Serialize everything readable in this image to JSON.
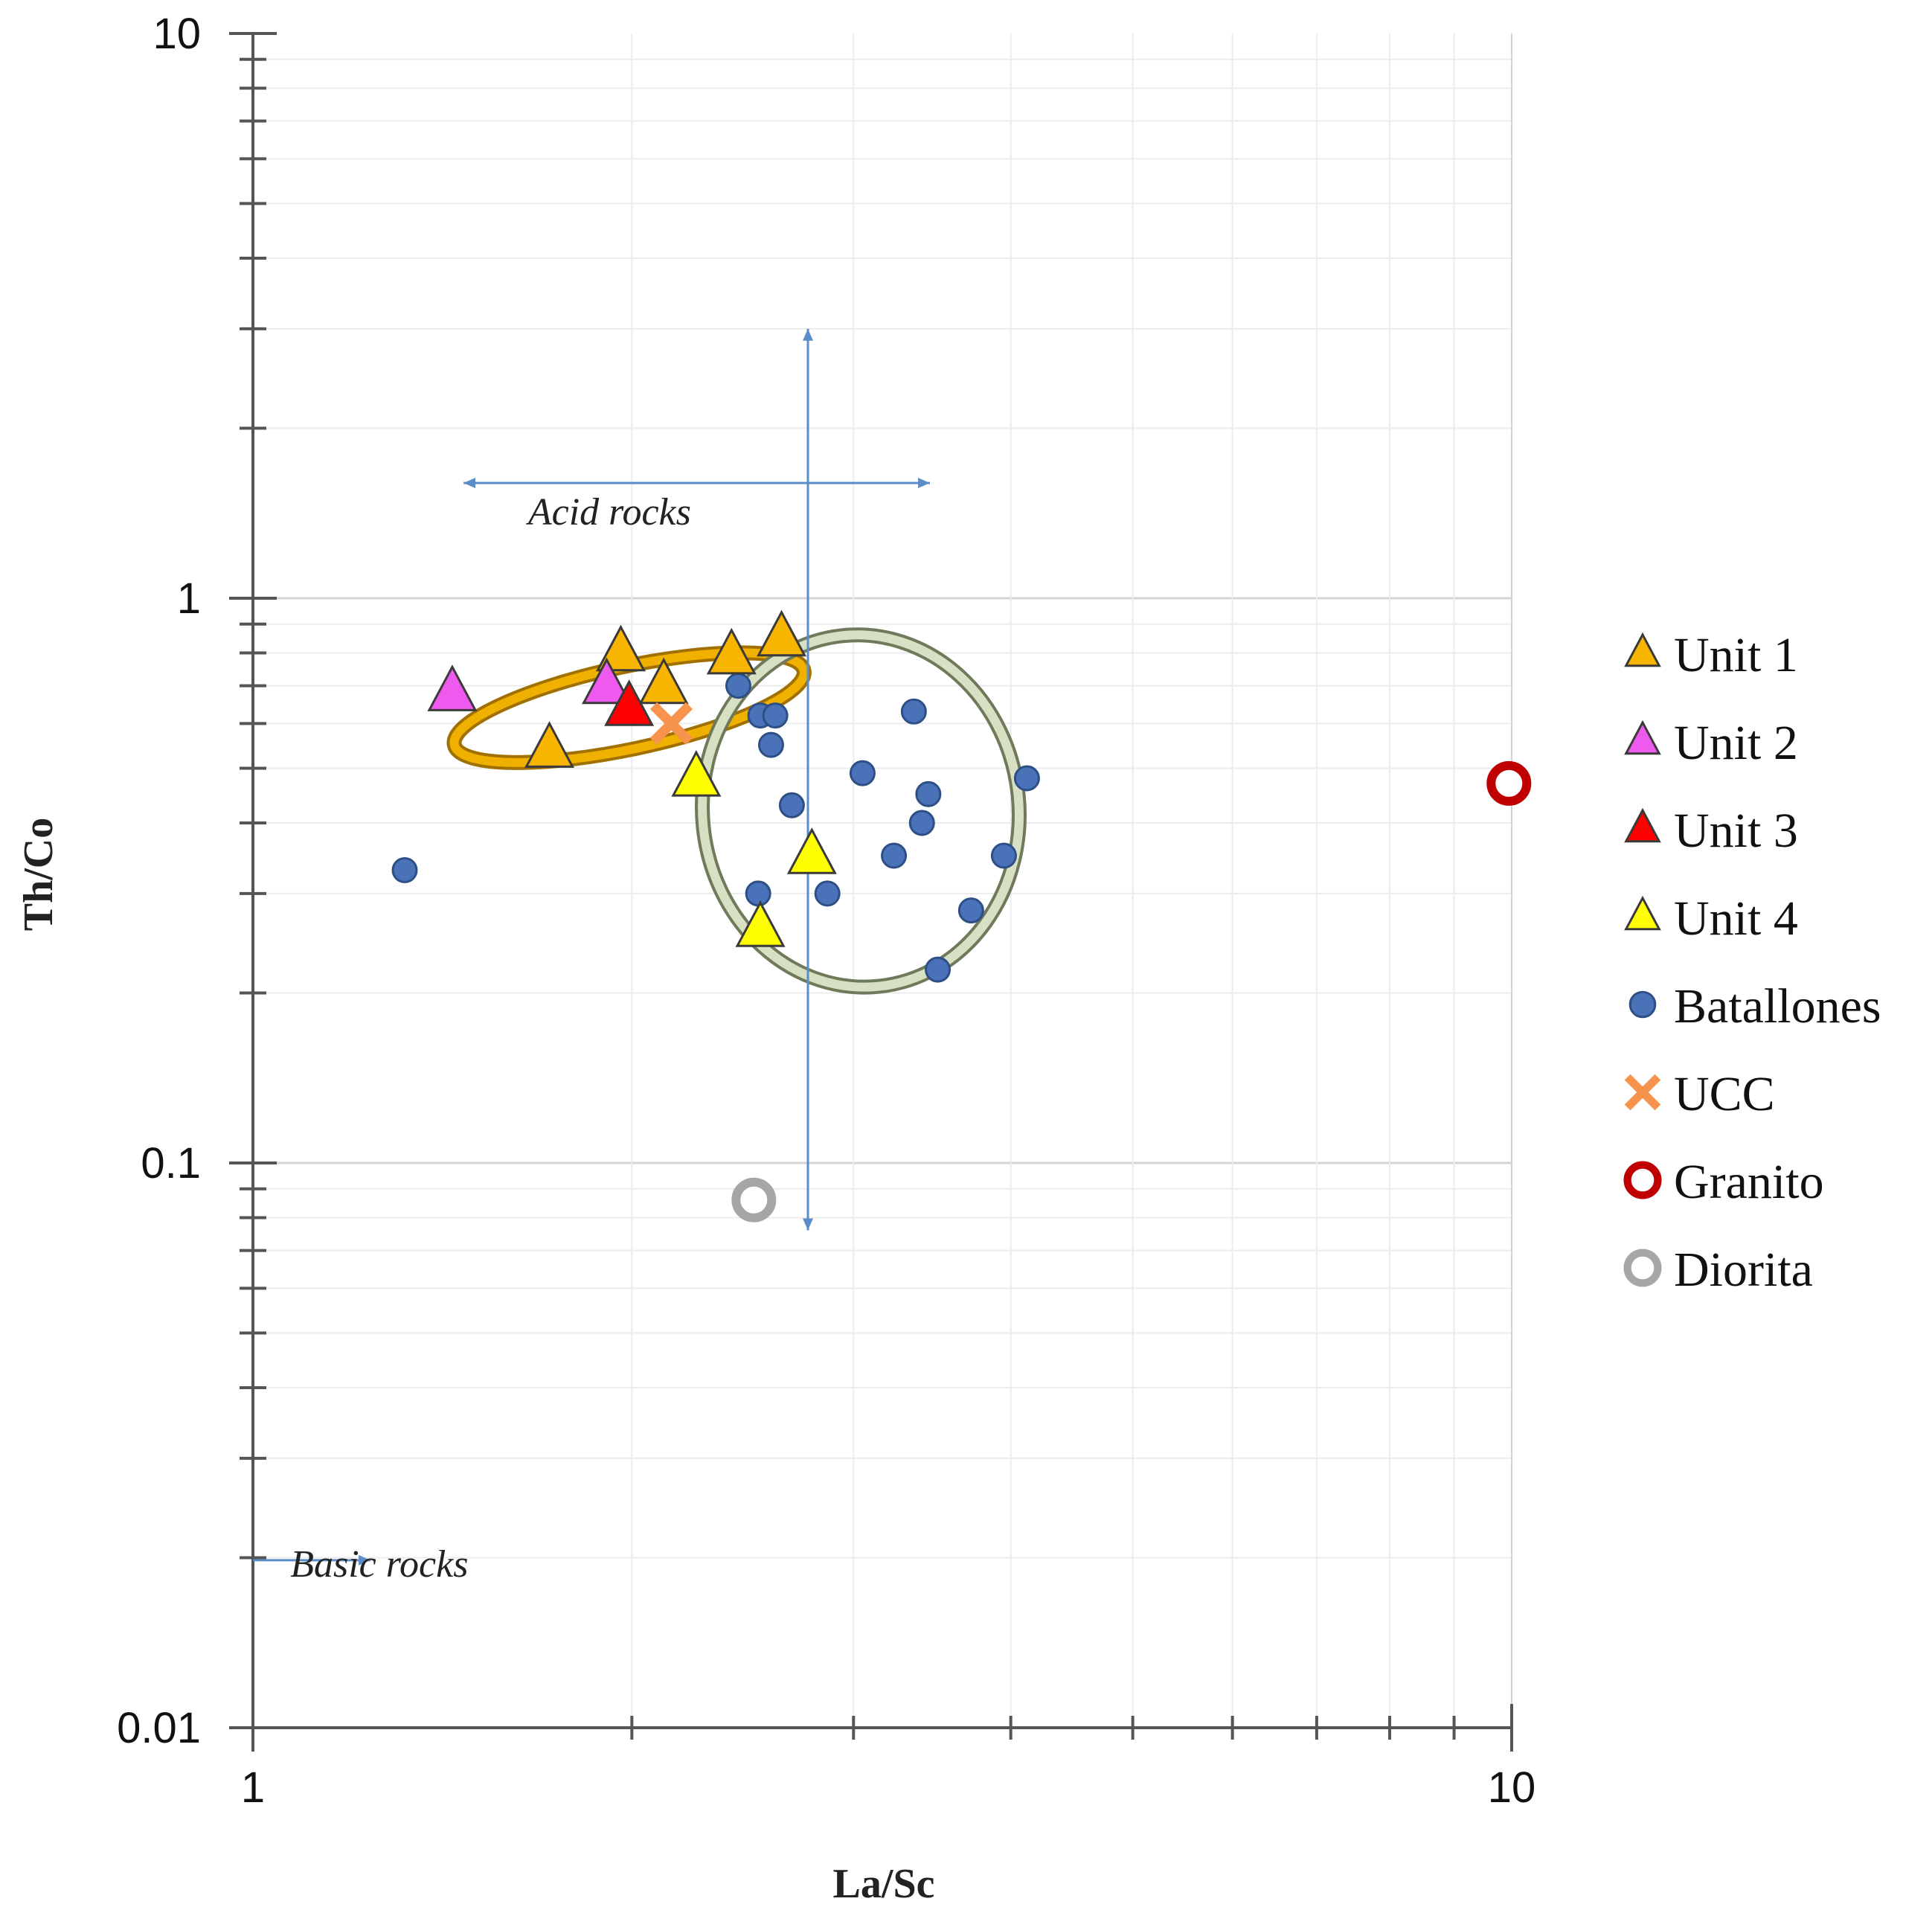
{
  "chart_data": {
    "type": "scatter",
    "title": "",
    "xlabel": "La/Sc",
    "ylabel": "Th/Co",
    "xscale": "log",
    "yscale": "log",
    "xlim": [
      1,
      10
    ],
    "ylim": [
      0.01,
      10
    ],
    "x_ticks": [
      {
        "value": 1,
        "label": "1"
      },
      {
        "value": 10,
        "label": "10"
      }
    ],
    "y_ticks": [
      {
        "value": 10,
        "label": "10"
      },
      {
        "value": 1,
        "label": "1"
      },
      {
        "value": 0.1,
        "label": "0.1"
      },
      {
        "value": 0.01,
        "label": "0.01"
      }
    ],
    "grid": true,
    "legend_position": "right",
    "series": [
      {
        "name": "Unit 1",
        "marker": "triangle",
        "color": "#F7B500",
        "points": [
          [
            1.72,
            0.54
          ],
          [
            1.96,
            0.8
          ],
          [
            2.12,
            0.7
          ],
          [
            2.4,
            0.79
          ],
          [
            2.63,
            0.85
          ]
        ]
      },
      {
        "name": "Unit 2",
        "marker": "triangle",
        "color": "#EE5AEE",
        "points": [
          [
            1.44,
            0.68
          ],
          [
            1.91,
            0.7
          ]
        ]
      },
      {
        "name": "Unit 3",
        "marker": "triangle",
        "color": "#FF0000",
        "points": [
          [
            1.99,
            0.64
          ]
        ]
      },
      {
        "name": "Unit 4",
        "marker": "triangle",
        "color": "#FFFF00",
        "points": [
          [
            2.25,
            0.48
          ],
          [
            2.78,
            0.35
          ],
          [
            2.53,
            0.26
          ]
        ]
      },
      {
        "name": "Batallones",
        "marker": "circle",
        "color": "#4A72B8",
        "points": [
          [
            1.32,
            0.33
          ],
          [
            2.43,
            0.7
          ],
          [
            2.53,
            0.62
          ],
          [
            2.6,
            0.62
          ],
          [
            2.58,
            0.55
          ],
          [
            2.68,
            0.43
          ],
          [
            2.52,
            0.3
          ],
          [
            2.86,
            0.3
          ],
          [
            3.05,
            0.49
          ],
          [
            3.23,
            0.35
          ],
          [
            3.35,
            0.63
          ],
          [
            3.4,
            0.4
          ],
          [
            3.44,
            0.45
          ],
          [
            3.5,
            0.22
          ],
          [
            3.72,
            0.28
          ],
          [
            3.95,
            0.35
          ],
          [
            4.12,
            0.48
          ]
        ]
      },
      {
        "name": "UCC",
        "marker": "x",
        "color": "#F7934C",
        "points": [
          [
            2.15,
            0.6
          ]
        ]
      },
      {
        "name": "Granito",
        "marker": "open-circle",
        "color": "#C00000",
        "points": [
          [
            9.95,
            0.47
          ]
        ]
      },
      {
        "name": "Diorita",
        "marker": "open-circle",
        "color": "#A6A6A6",
        "points": [
          [
            2.5,
            0.086
          ]
        ]
      }
    ],
    "ellipses": [
      {
        "name": "Unit ellipse",
        "color": "#F0B000",
        "inner_color": "#A07000",
        "center": [
          1.99,
          0.64
        ],
        "x_span": [
          1.42,
          2.73
        ],
        "y_span": [
          0.55,
          0.77
        ],
        "rotation_deg": -12
      },
      {
        "name": "Batallones ellipse",
        "color": "#D8E0C4",
        "inner_color": "#6E7A5A",
        "center": [
          3.04,
          0.42
        ],
        "x_span": [
          2.27,
          4.05
        ],
        "y_span": [
          0.19,
          0.8
        ],
        "rotation_deg": -6
      }
    ],
    "annotations": [
      {
        "text": "Acid rocks",
        "x": 1.92,
        "y": 1.35
      },
      {
        "text": "Basic rocks",
        "x": 1.26,
        "y": 0.0185
      }
    ],
    "arrows": [
      {
        "kind": "horizontal-double",
        "y": 1.6,
        "x_from": 1.47,
        "x_to": 3.45
      },
      {
        "kind": "vertical-double",
        "x": 2.76,
        "y_from": 3.0,
        "y_to": 0.076
      },
      {
        "kind": "horizontal-single",
        "y": 0.0198,
        "x_from": 1.0,
        "x_to": 1.24
      }
    ]
  }
}
